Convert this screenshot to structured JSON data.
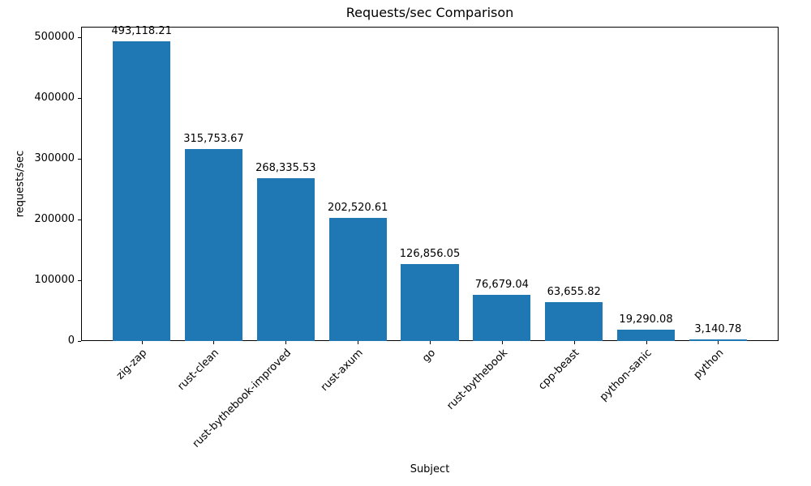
{
  "chart_data": {
    "type": "bar",
    "title": "Requests/sec Comparison",
    "xlabel": "Subject",
    "ylabel": "requests/sec",
    "categories": [
      "zig-zap",
      "rust-clean",
      "rust-bythebook-improved",
      "rust-axum",
      "go",
      "rust-bythebook",
      "cpp-beast",
      "python-sanic",
      "python"
    ],
    "values": [
      493118.21,
      315753.67,
      268335.53,
      202520.61,
      126856.05,
      76679.04,
      63655.82,
      19290.08,
      3140.78
    ],
    "value_labels": [
      "493,118.21",
      "315,753.67",
      "268,335.53",
      "202,520.61",
      "126,856.05",
      "76,679.04",
      "63,655.82",
      "19,290.08",
      "3,140.78"
    ],
    "yticks": [
      0,
      100000,
      200000,
      300000,
      400000,
      500000
    ],
    "ylim": [
      0,
      517774
    ],
    "bar_color": "#1f77b4",
    "legend": "none",
    "grid": false
  }
}
